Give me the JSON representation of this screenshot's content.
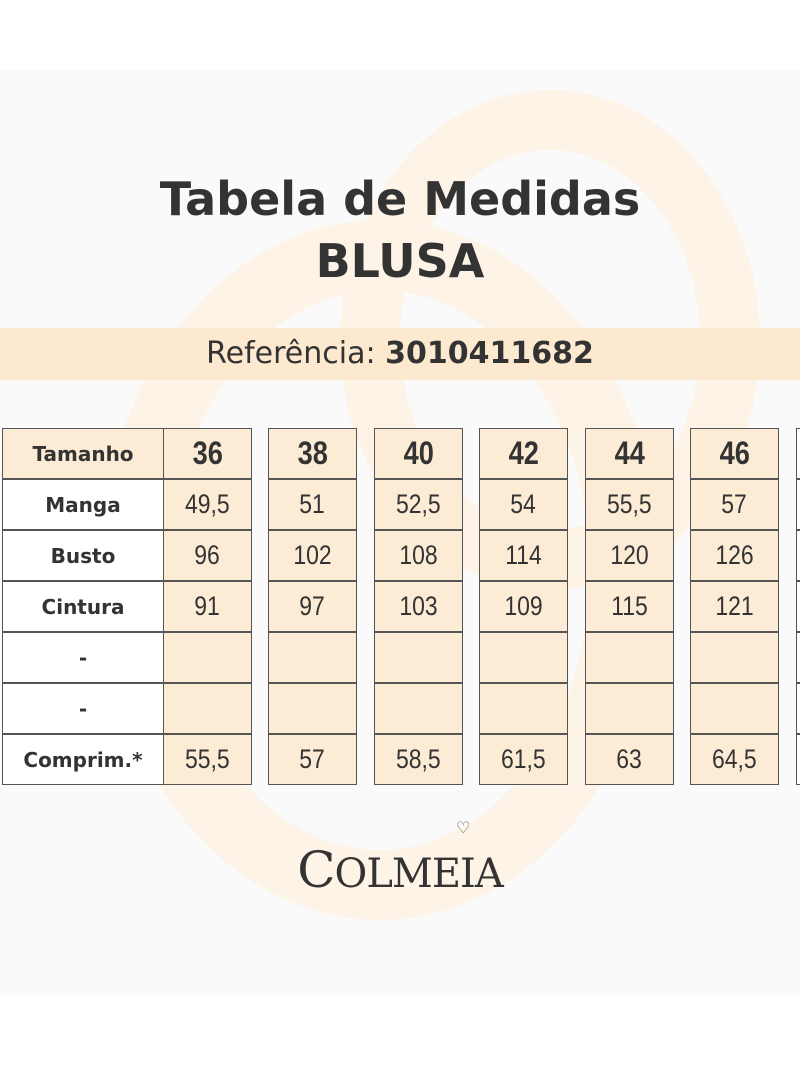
{
  "title": {
    "line1": "Tabela de Medidas",
    "line2": "BLUSA"
  },
  "reference": {
    "label": "Referência:",
    "value": "3010411682"
  },
  "table": {
    "header_label": "Tamanho",
    "sizes": [
      "36",
      "38",
      "40",
      "42",
      "44",
      "46"
    ],
    "rows": [
      {
        "label": "Manga",
        "values": [
          "49,5",
          "51",
          "52,5",
          "54",
          "55,5",
          "57"
        ]
      },
      {
        "label": "Busto",
        "values": [
          "96",
          "102",
          "108",
          "114",
          "120",
          "126"
        ]
      },
      {
        "label": "Cintura",
        "values": [
          "91",
          "97",
          "103",
          "109",
          "115",
          "121"
        ]
      },
      {
        "label": "-",
        "values": [
          "",
          "",
          "",
          "",
          "",
          ""
        ]
      },
      {
        "label": "-",
        "values": [
          "",
          "",
          "",
          "",
          "",
          ""
        ]
      },
      {
        "label": "Comprim.*",
        "values": [
          "55,5",
          "57",
          "58,5",
          "61,5",
          "63",
          "64,5"
        ]
      }
    ]
  },
  "brand": {
    "logo_text": "COLMEIA"
  },
  "colors": {
    "accent": "#fdecd5",
    "text": "#333333",
    "border": "#555555"
  }
}
